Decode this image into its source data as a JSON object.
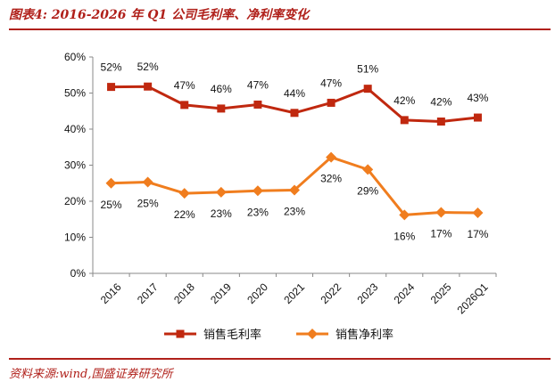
{
  "header": {
    "title": "图表4:  2016-2026 年 Q1 公司毛利率、净利率变化"
  },
  "footer": {
    "source": "资料来源:wind,国盛证券研究所"
  },
  "colors": {
    "accent": "#b0201a",
    "gross": "#c0280f",
    "net": "#f07d1e"
  },
  "chart_data": {
    "type": "line",
    "categories": [
      "2016",
      "2017",
      "2018",
      "2019",
      "2020",
      "2021",
      "2022",
      "2023",
      "2024",
      "2025",
      "2026Q1"
    ],
    "ylim": [
      0,
      60
    ],
    "yticks": [
      "0%",
      "10%",
      "20%",
      "30%",
      "40%",
      "50%",
      "60%"
    ],
    "grid": false,
    "legend_position": "bottom",
    "series": [
      {
        "name": "销售毛利率",
        "values": [
          51.7,
          51.8,
          46.7,
          45.7,
          46.8,
          44.5,
          47.3,
          51.2,
          42.5,
          42.1,
          43.2
        ],
        "labels": [
          "52%",
          "52%",
          "47%",
          "46%",
          "47%",
          "44%",
          "47%",
          "51%",
          "42%",
          "42%",
          "43%"
        ],
        "marker": "square",
        "label_position": "above"
      },
      {
        "name": "销售净利率",
        "values": [
          25.0,
          25.3,
          22.2,
          22.5,
          22.9,
          23.1,
          32.2,
          28.8,
          16.2,
          16.9,
          16.8
        ],
        "labels": [
          "25%",
          "25%",
          "22%",
          "23%",
          "23%",
          "23%",
          "32%",
          "29%",
          "16%",
          "17%",
          "17%"
        ],
        "marker": "diamond",
        "label_position": "below"
      }
    ]
  }
}
